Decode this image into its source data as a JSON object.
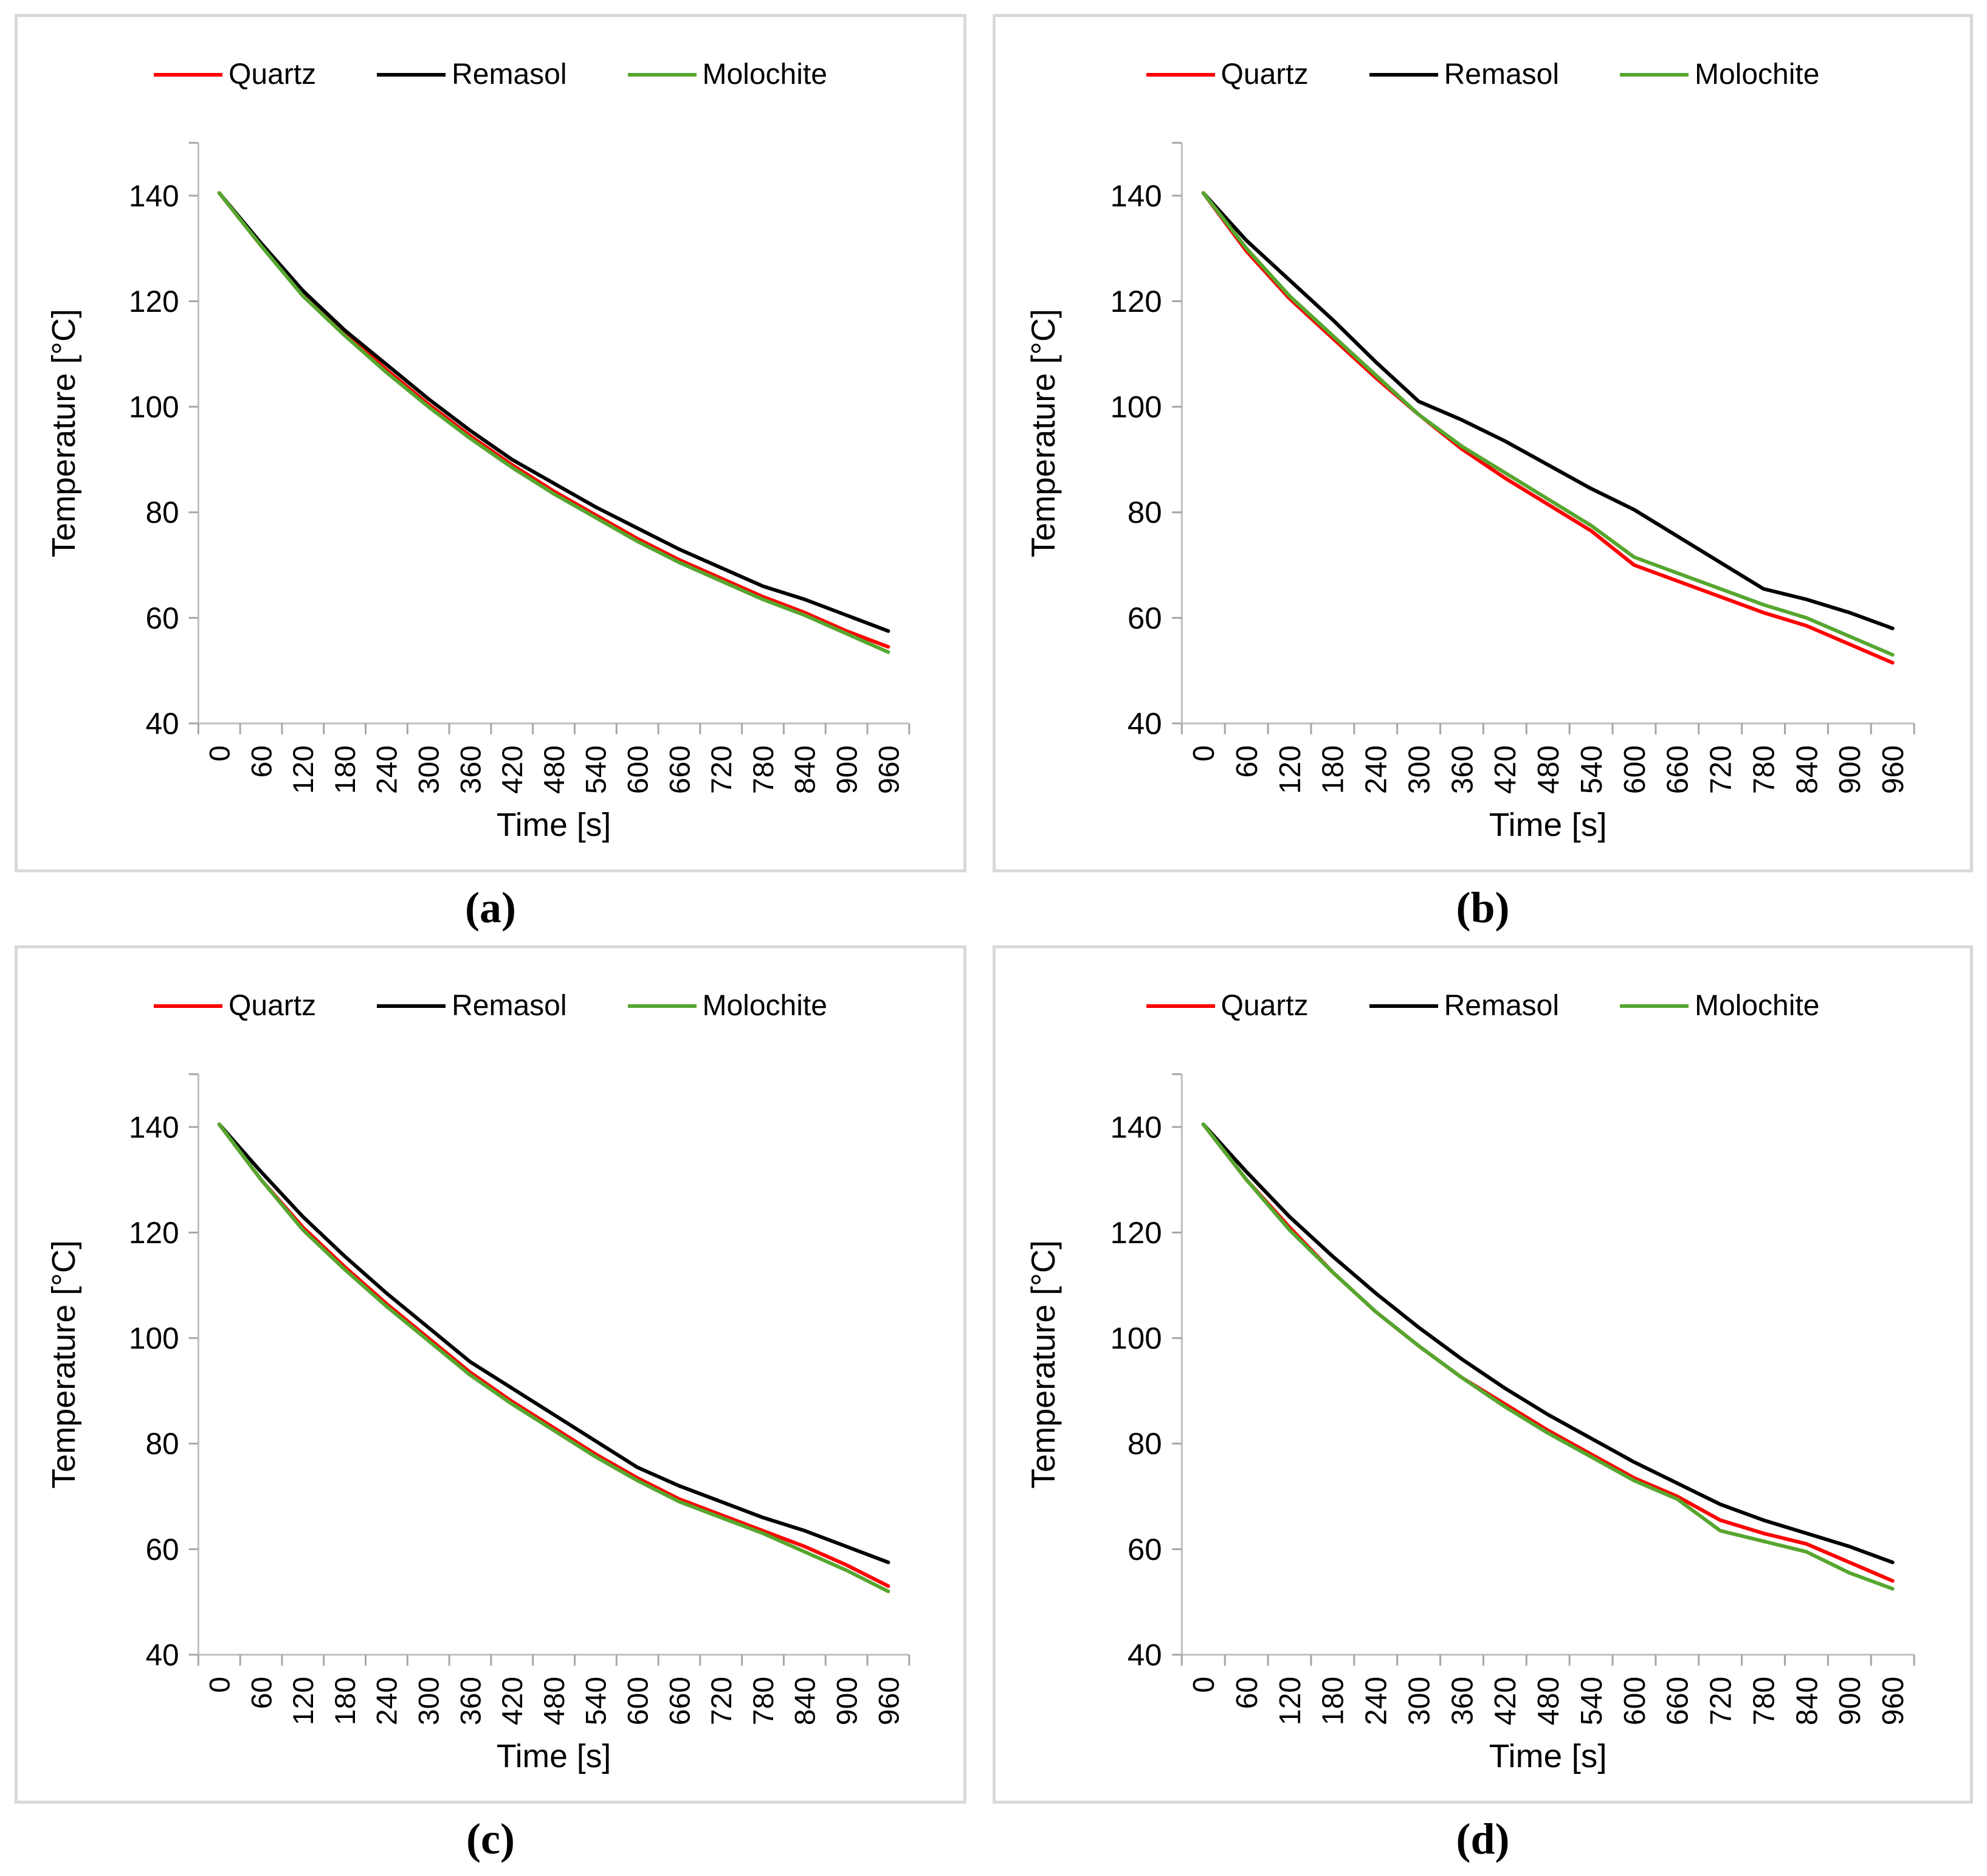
{
  "page": {
    "background": "#ffffff"
  },
  "colors": {
    "quartz": "#FF0000",
    "remasol": "#000000",
    "molochite": "#56A62F",
    "axis_line": "#BFBFBF",
    "tick": "#A6A6A6",
    "text": "#000000",
    "panel_border": "#D9D9D9"
  },
  "chart_data": [
    {
      "id": "a",
      "caption": "(a)",
      "type": "line",
      "xlabel": "Time [s]",
      "ylabel": "Temperature [°C]",
      "legend_position": "top",
      "grid": false,
      "ylim": [
        40,
        150
      ],
      "y_ticks": [
        40,
        60,
        80,
        100,
        120,
        140
      ],
      "x": [
        0,
        60,
        120,
        180,
        240,
        300,
        360,
        420,
        480,
        540,
        600,
        660,
        720,
        780,
        840,
        900,
        960
      ],
      "series": [
        {
          "name": "Quartz",
          "color": "#FF0000",
          "values": [
            140.5,
            130.5,
            121.5,
            114,
            107,
            100.5,
            94.5,
            89,
            84,
            79.5,
            75,
            71,
            67.5,
            64,
            61,
            57.5,
            54.5
          ]
        },
        {
          "name": "Remasol",
          "color": "#000000",
          "values": [
            140.5,
            131,
            122,
            114.5,
            108,
            101.5,
            95.5,
            90,
            85.5,
            81,
            77,
            73,
            69.5,
            66,
            63.5,
            60.5,
            57.5
          ]
        },
        {
          "name": "Molochite",
          "color": "#56A62F",
          "values": [
            140.5,
            130.5,
            121,
            113.5,
            106.5,
            100,
            94,
            88.5,
            83.5,
            79,
            74.5,
            70.5,
            67,
            63.5,
            60.5,
            57,
            53.5
          ]
        }
      ]
    },
    {
      "id": "b",
      "caption": "(b)",
      "type": "line",
      "xlabel": "Time [s]",
      "ylabel": "Temperature [°C]",
      "legend_position": "top",
      "grid": false,
      "ylim": [
        40,
        150
      ],
      "y_ticks": [
        40,
        60,
        80,
        100,
        120,
        140
      ],
      "x": [
        0,
        60,
        120,
        180,
        240,
        300,
        360,
        420,
        480,
        540,
        600,
        660,
        720,
        780,
        840,
        900,
        960
      ],
      "series": [
        {
          "name": "Quartz",
          "color": "#FF0000",
          "values": [
            140.5,
            129.5,
            120.5,
            113,
            105.5,
            98.5,
            92,
            86.5,
            81.5,
            76.5,
            70,
            67,
            64,
            61,
            58.5,
            55,
            51.5
          ]
        },
        {
          "name": "Remasol",
          "color": "#000000",
          "values": [
            140.5,
            131.5,
            124,
            116.5,
            108.5,
            101,
            97.5,
            93.5,
            89,
            84.5,
            80.5,
            75.5,
            70.5,
            65.5,
            63.5,
            61,
            58
          ]
        },
        {
          "name": "Molochite",
          "color": "#56A62F",
          "values": [
            140.5,
            130,
            121,
            113.5,
            106,
            98.5,
            92.5,
            87.5,
            82.5,
            77.5,
            71.5,
            68.5,
            65.5,
            62.5,
            60,
            56.5,
            53
          ]
        }
      ]
    },
    {
      "id": "c",
      "caption": "(c)",
      "type": "line",
      "xlabel": "Time [s]",
      "ylabel": "Temperature [°C]",
      "legend_position": "top",
      "grid": false,
      "ylim": [
        40,
        150
      ],
      "y_ticks": [
        40,
        60,
        80,
        100,
        120,
        140
      ],
      "x": [
        0,
        60,
        120,
        180,
        240,
        300,
        360,
        420,
        480,
        540,
        600,
        660,
        720,
        780,
        840,
        900,
        960
      ],
      "series": [
        {
          "name": "Quartz",
          "color": "#FF0000",
          "values": [
            140.5,
            130,
            121,
            113.5,
            106.5,
            100,
            93.5,
            88,
            83,
            78,
            73.5,
            69.5,
            66.5,
            63.5,
            60.5,
            57,
            53
          ]
        },
        {
          "name": "Remasol",
          "color": "#000000",
          "values": [
            140.5,
            131.5,
            123,
            115.5,
            108.5,
            102,
            95.5,
            90.5,
            85.5,
            80.5,
            75.5,
            72,
            69,
            66,
            63.5,
            60.5,
            57.5
          ]
        },
        {
          "name": "Molochite",
          "color": "#56A62F",
          "values": [
            140.5,
            130,
            120.5,
            113,
            106,
            99.5,
            93,
            87.5,
            82.5,
            77.5,
            73,
            69,
            66,
            63,
            59.5,
            56,
            52
          ]
        }
      ]
    },
    {
      "id": "d",
      "caption": "(d)",
      "type": "line",
      "xlabel": "Time [s]",
      "ylabel": "Temperature [°C]",
      "legend_position": "top",
      "grid": false,
      "ylim": [
        40,
        150
      ],
      "y_ticks": [
        40,
        60,
        80,
        100,
        120,
        140
      ],
      "x": [
        0,
        60,
        120,
        180,
        240,
        300,
        360,
        420,
        480,
        540,
        600,
        660,
        720,
        780,
        840,
        900,
        960
      ],
      "series": [
        {
          "name": "Quartz",
          "color": "#FF0000",
          "values": [
            140.5,
            130,
            121,
            112.5,
            105,
            98.5,
            92.5,
            87.5,
            82.5,
            78,
            73.5,
            70,
            65.5,
            63,
            61,
            57.5,
            54
          ]
        },
        {
          "name": "Remasol",
          "color": "#000000",
          "values": [
            140.5,
            131.5,
            123,
            115.5,
            108.5,
            102,
            96,
            90.5,
            85.5,
            81,
            76.5,
            72.5,
            68.5,
            65.5,
            63,
            60.5,
            57.5
          ]
        },
        {
          "name": "Molochite",
          "color": "#56A62F",
          "values": [
            140.5,
            130,
            120.5,
            112.5,
            105,
            98.5,
            92.5,
            87,
            82,
            77.5,
            73,
            69.5,
            63.5,
            61.5,
            59.5,
            55.5,
            52.5
          ]
        }
      ]
    }
  ]
}
